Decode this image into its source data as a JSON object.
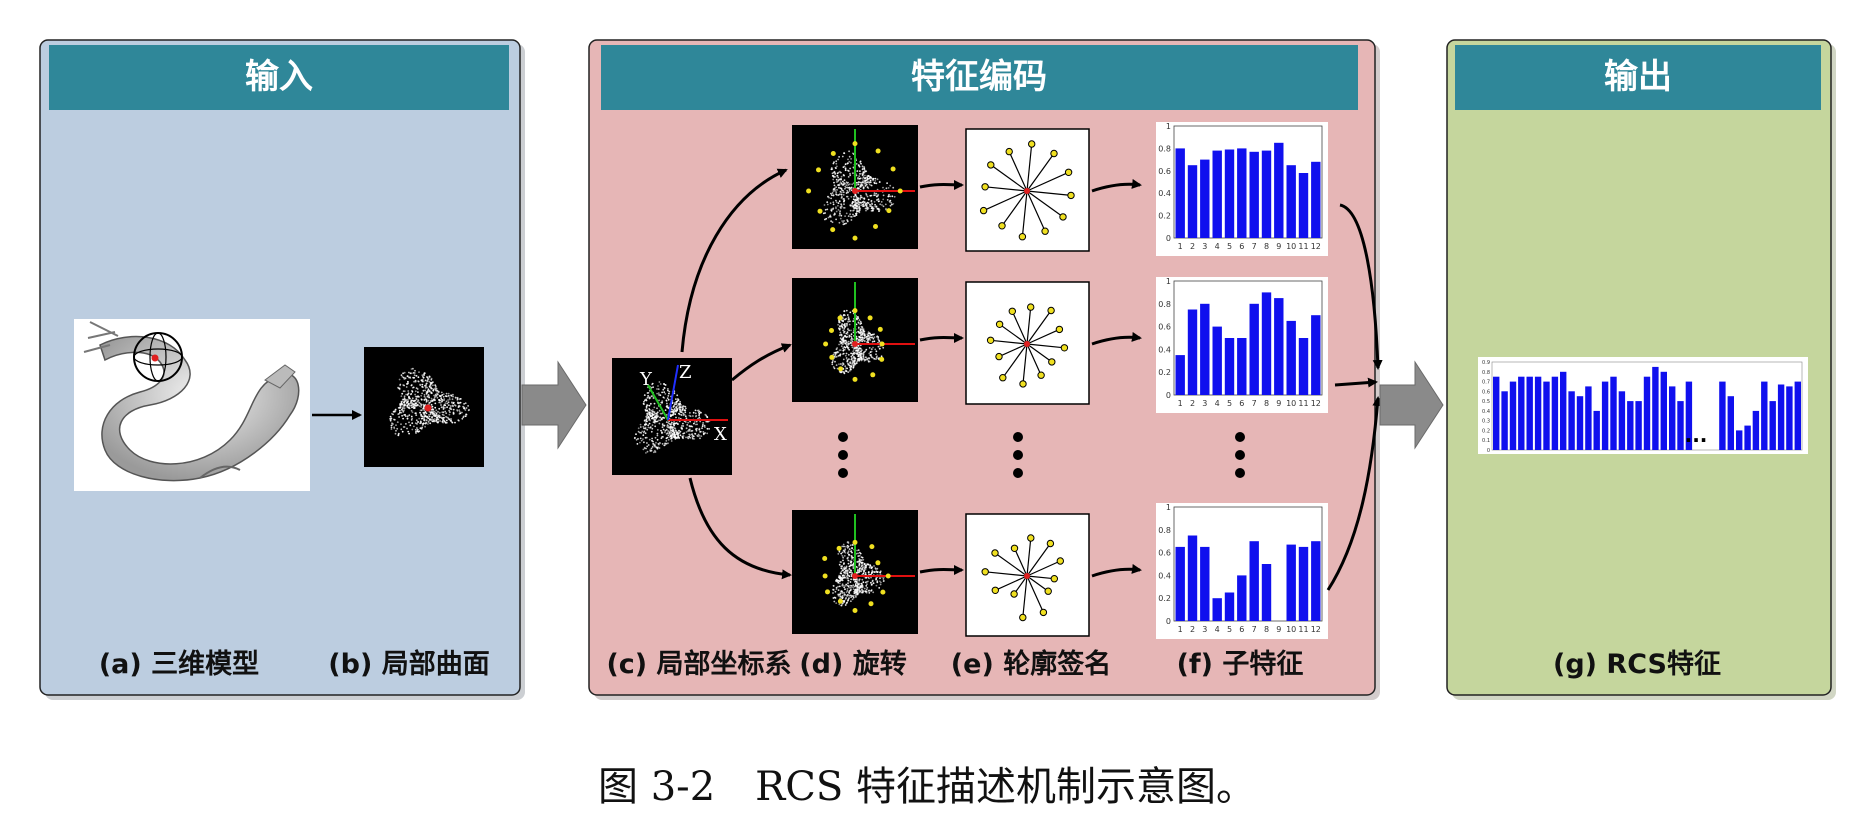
{
  "colors": {
    "input_panel": "#bccde0",
    "feature_panel": "#e6b6b6",
    "output_panel": "#c5d69d",
    "header": "#2f8799",
    "bar": "#1010ee",
    "arrow_gray": "#8a8a8a"
  },
  "panels": {
    "input": {
      "title": "输入",
      "labels": [
        "(a) 三维模型",
        "(b) 局部曲面"
      ]
    },
    "feature": {
      "title": "特征编码",
      "labels": [
        "(c) 局部坐标系",
        "(d) 旋转",
        "(e) 轮廓签名",
        "(f) 子特征"
      ]
    },
    "output": {
      "title": "输出",
      "labels": [
        "(g) RCS特征"
      ],
      "ellipsis": "..."
    }
  },
  "axes": {
    "x": "X",
    "y": "Y",
    "z": "Z"
  },
  "caption": "图 3-2　RCS 特征描述机制示意图。",
  "chart_data": [
    {
      "type": "bar",
      "categories": [
        "1",
        "2",
        "3",
        "4",
        "5",
        "6",
        "7",
        "8",
        "9",
        "10",
        "11",
        "12"
      ],
      "values": [
        0.8,
        0.65,
        0.7,
        0.78,
        0.79,
        0.8,
        0.77,
        0.78,
        0.85,
        0.65,
        0.58,
        0.68
      ],
      "ylim": [
        0,
        1
      ],
      "yticks": [
        "0",
        "0.2",
        "0.4",
        "0.6",
        "0.8",
        "1"
      ]
    },
    {
      "type": "bar",
      "categories": [
        "1",
        "2",
        "3",
        "4",
        "5",
        "6",
        "7",
        "8",
        "9",
        "10",
        "11",
        "12"
      ],
      "values": [
        0.35,
        0.75,
        0.8,
        0.6,
        0.5,
        0.5,
        0.8,
        0.9,
        0.85,
        0.65,
        0.5,
        0.7
      ],
      "ylim": [
        0,
        1
      ],
      "yticks": [
        "0",
        "0.2",
        "0.4",
        "0.6",
        "0.8",
        "1"
      ]
    },
    {
      "type": "bar",
      "categories": [
        "1",
        "2",
        "3",
        "4",
        "5",
        "6",
        "7",
        "8",
        "9",
        "10",
        "11",
        "12"
      ],
      "values": [
        0.65,
        0.75,
        0.65,
        0.2,
        0.25,
        0.4,
        0.7,
        0.5,
        0,
        0.67,
        0.65,
        0.7
      ],
      "ylim": [
        0,
        1
      ],
      "yticks": [
        "0",
        "0.2",
        "0.4",
        "0.6",
        "0.8",
        "1"
      ]
    },
    {
      "type": "bar",
      "values": [
        0.75,
        0.6,
        0.7,
        0.75,
        0.75,
        0.75,
        0.7,
        0.75,
        0.8,
        0.6,
        0.55,
        0.65,
        0.4,
        0.7,
        0.75,
        0.6,
        0.5,
        0.5,
        0.75,
        0.85,
        0.8,
        0.65,
        0.5,
        0.7,
        0.7,
        0.55,
        0.2,
        0.25,
        0.4,
        0.7,
        0.5,
        0.67,
        0.65,
        0.7
      ],
      "gap_after_index": 23,
      "ylim": [
        0,
        0.9
      ],
      "yticks": [
        "0",
        "0.1",
        "0.2",
        "0.3",
        "0.4",
        "0.5",
        "0.6",
        "0.7",
        "0.8",
        "0.9"
      ]
    }
  ]
}
